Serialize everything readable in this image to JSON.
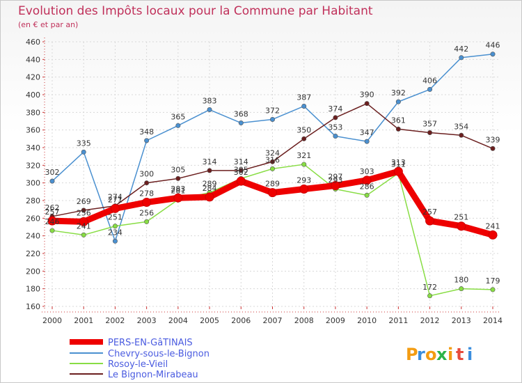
{
  "chart_data": {
    "type": "line",
    "title": "Evolution des Impôts locaux pour la Commune par Habitant",
    "subtitle": "(en € et par an)",
    "xlabel": "",
    "ylabel": "",
    "ylim": [
      160,
      460
    ],
    "ytick_step": 20,
    "grid": true,
    "legend_position": "bottom-left",
    "categories": [
      "2000",
      "2001",
      "2002",
      "2003",
      "2004",
      "2005",
      "2006",
      "2007",
      "2008",
      "2009",
      "2010",
      "2011",
      "2012",
      "2013",
      "2014"
    ],
    "series": [
      {
        "name": "PERS-EN-GâTINAIS",
        "color": "#ee0000",
        "emphasis": true,
        "values": [
          257,
          256,
          271,
          278,
          283,
          284,
          302,
          289,
          293,
          297,
          303,
          313,
          257,
          251,
          241
        ]
      },
      {
        "name": "Chevry-sous-le-Bignon",
        "color": "#4a90d0",
        "emphasis": false,
        "values": [
          302,
          335,
          234,
          348,
          365,
          383,
          368,
          372,
          387,
          353,
          347,
          392,
          406,
          442,
          446
        ]
      },
      {
        "name": "Rosoy-le-Vieil",
        "color": "#88dd44",
        "emphasis": false,
        "values": [
          246,
          241,
          251,
          256,
          281,
          289,
          305,
          316,
          321,
          293,
          286,
          311,
          172,
          180,
          179
        ]
      },
      {
        "name": "Le Bignon-Mirabeau",
        "color": "#6b1f1f",
        "emphasis": false,
        "values": [
          262,
          269,
          274,
          300,
          305,
          314,
          314,
          324,
          350,
          374,
          390,
          361,
          357,
          354,
          339
        ]
      }
    ]
  },
  "brand": {
    "text": "Proxiti"
  }
}
